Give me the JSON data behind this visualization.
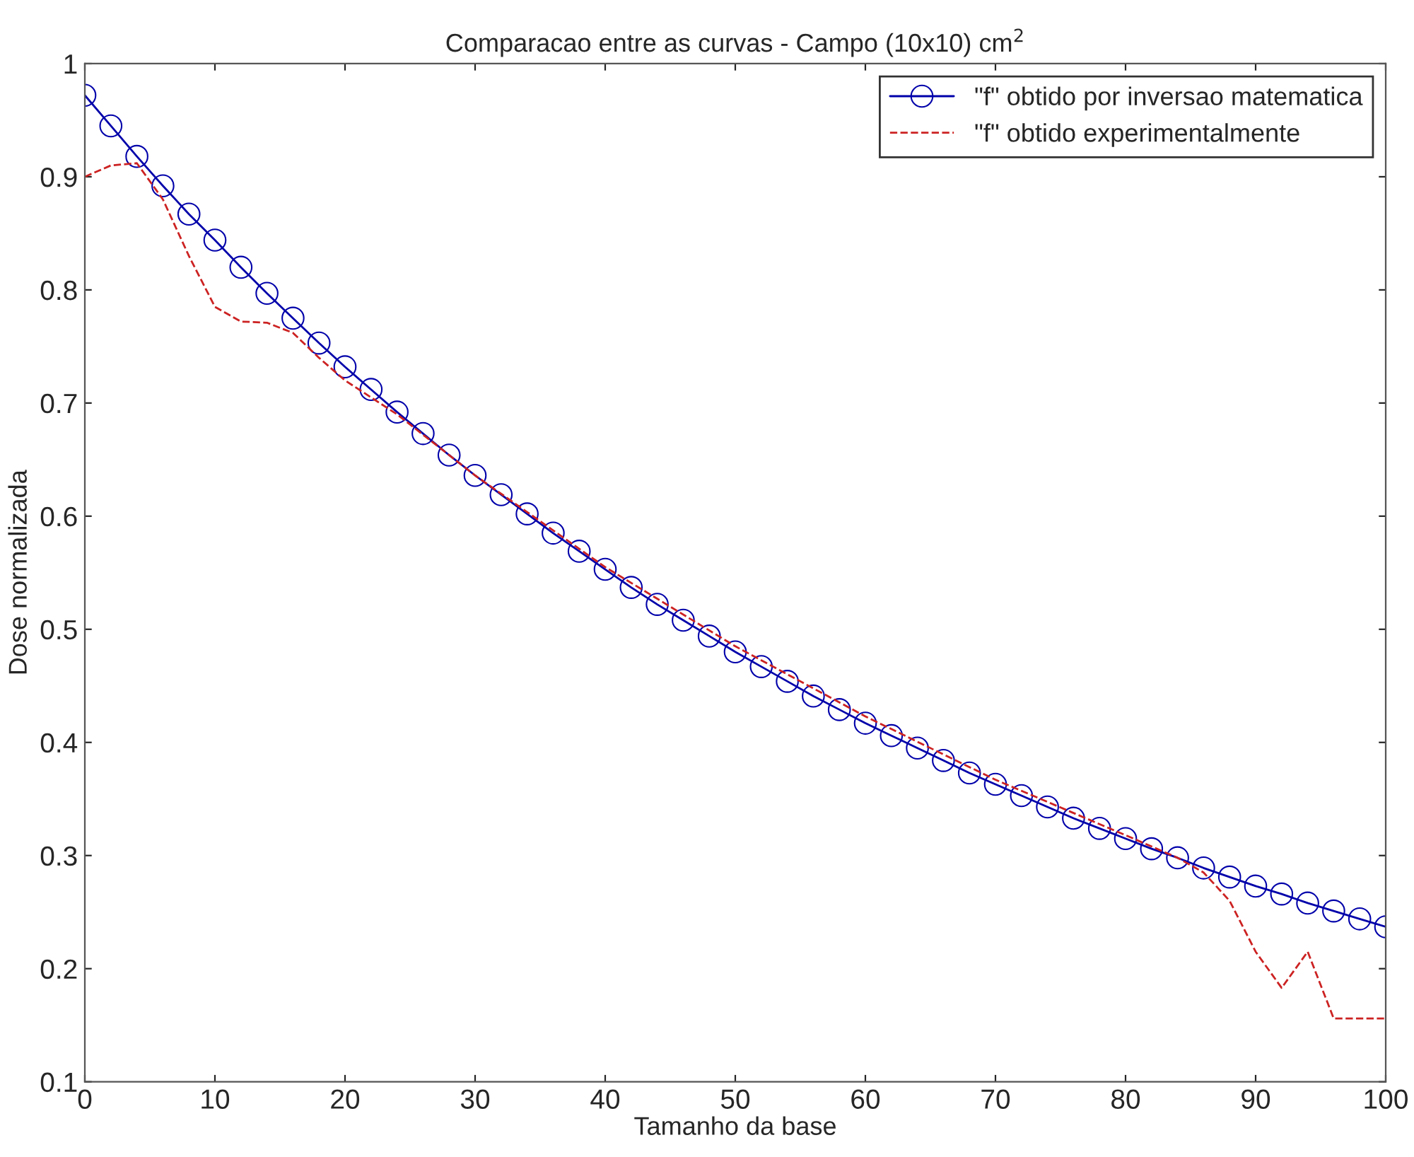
{
  "chart_data": {
    "type": "line",
    "title": "Comparacao entre as curvas - Campo (10x10) cm$^{2}$",
    "xlabel": "Tamanho da base",
    "ylabel": "Dose normalizada",
    "xlim": [
      0,
      100
    ],
    "xticks": [
      0,
      10,
      20,
      30,
      40,
      50,
      60,
      70,
      80,
      90,
      100
    ],
    "ylim": [
      0.1,
      1
    ],
    "yticks": [
      0.1,
      0.2,
      0.3,
      0.4,
      0.5,
      0.6,
      0.7,
      0.8,
      0.9,
      1
    ],
    "grid": false,
    "legend": "top right",
    "series": [
      {
        "name": "\"f\" obtido por inversao matematica",
        "color": "#0000aa",
        "marker": "circle",
        "line_style": "solid",
        "x": [
          0,
          2,
          4,
          6,
          8,
          10,
          12,
          14,
          16,
          18,
          20,
          22,
          24,
          26,
          28,
          30,
          32,
          34,
          36,
          38,
          40,
          42,
          44,
          46,
          48,
          50,
          52,
          54,
          56,
          58,
          60,
          62,
          64,
          66,
          68,
          70,
          72,
          74,
          76,
          78,
          80,
          82,
          84,
          86,
          88,
          90,
          92,
          94,
          96,
          98,
          100
        ],
        "values": [
          0.972,
          0.945,
          0.918,
          0.892,
          0.867,
          0.844,
          0.82,
          0.797,
          0.775,
          0.753,
          0.732,
          0.712,
          0.692,
          0.673,
          0.654,
          0.636,
          0.619,
          0.602,
          0.585,
          0.569,
          0.553,
          0.537,
          0.522,
          0.508,
          0.494,
          0.48,
          0.467,
          0.454,
          0.441,
          0.429,
          0.417,
          0.406,
          0.395,
          0.384,
          0.373,
          0.363,
          0.353,
          0.343,
          0.333,
          0.324,
          0.315,
          0.306,
          0.298,
          0.289,
          0.281,
          0.273,
          0.266,
          0.258,
          0.251,
          0.244,
          0.237
        ]
      },
      {
        "name": "\"f\" obtido experimentalmente",
        "color": "#cc2222",
        "marker": "none",
        "line_style": "dashed",
        "x": [
          0,
          2,
          4,
          6,
          8,
          10,
          12,
          14,
          16,
          18,
          20,
          24,
          30,
          40,
          50,
          60,
          70,
          80,
          84,
          86,
          88,
          90,
          92,
          94,
          96,
          100
        ],
        "values": [
          0.9,
          0.91,
          0.912,
          0.88,
          0.83,
          0.785,
          0.772,
          0.771,
          0.762,
          0.74,
          0.72,
          0.69,
          0.636,
          0.555,
          0.485,
          0.423,
          0.367,
          0.318,
          0.298,
          0.285,
          0.26,
          0.215,
          0.183,
          0.215,
          0.156,
          0.156
        ]
      }
    ]
  }
}
